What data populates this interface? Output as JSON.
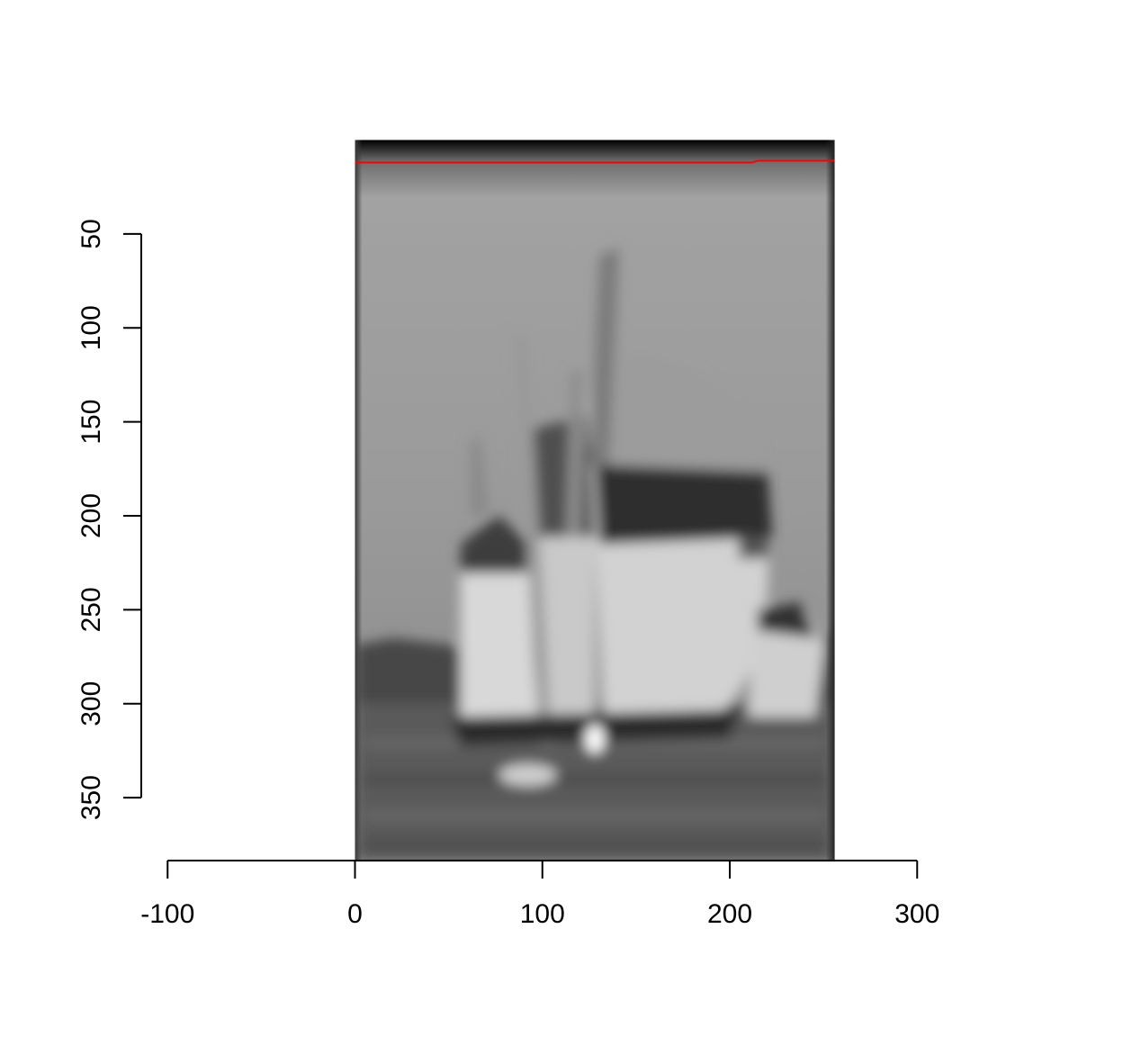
{
  "chart_data": {
    "type": "image",
    "title": "",
    "xlabel": "",
    "ylabel": "",
    "xlim": [
      -100,
      300
    ],
    "ylim": [
      385,
      0
    ],
    "x_ticks": [
      -100,
      0,
      100,
      200,
      300
    ],
    "y_ticks": [
      50,
      100,
      150,
      200,
      250,
      300,
      350
    ],
    "image": {
      "description": "blurred grayscale photo of sailboats with spinnakers on water",
      "extent_x": [
        0,
        256
      ],
      "extent_y": [
        0,
        384
      ]
    },
    "series": [
      {
        "type": "line",
        "color": "#ff0000",
        "x": [
          0,
          212,
          215,
          256
        ],
        "y": [
          12,
          12,
          11,
          11
        ]
      }
    ],
    "colors": {
      "line": "#ff0000",
      "axes": "#000000"
    }
  }
}
